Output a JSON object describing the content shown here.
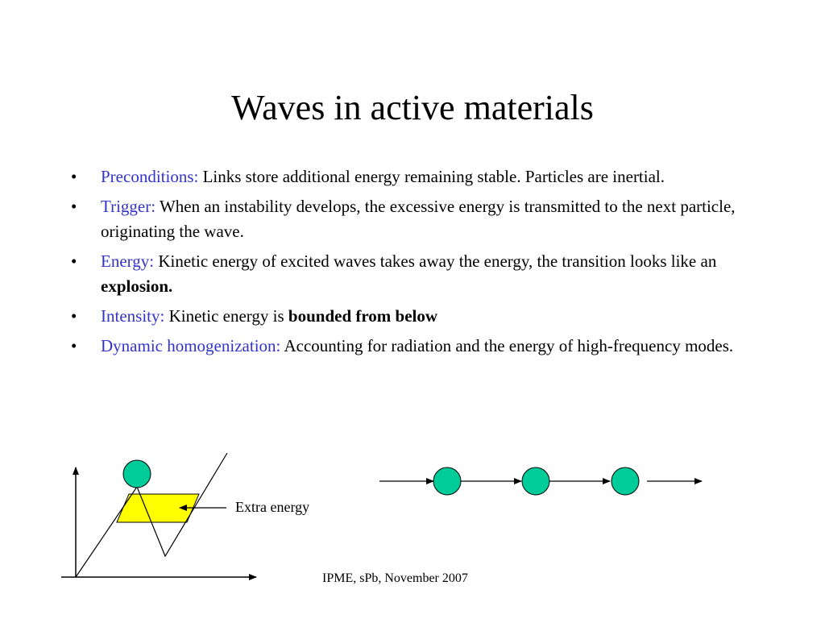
{
  "slide": {
    "title": "Waves in active materials",
    "bullets": [
      {
        "label": "Preconditions:",
        "text": " Links store additional energy remaining stable. Particles are inertial.",
        "bold": "",
        "tail": ""
      },
      {
        "label": "Trigger:",
        "text": " When an instability develops, the excessive energy is transmitted to the next particle, originating the wave.",
        "bold": "",
        "tail": ""
      },
      {
        "label": "Energy:",
        "text": " Kinetic energy of excited waves takes away the energy, the transition looks like an ",
        "bold": "explosion.",
        "tail": ""
      },
      {
        "label": "Intensity:",
        "text": " Kinetic energy is ",
        "bold": "bounded from below",
        "tail": ""
      },
      {
        "label": "Dynamic homogenization:",
        "text": " Accounting for radiation and the energy of high-frequency modes.",
        "bold": "",
        "tail": ""
      }
    ],
    "bullet_glyph": "•",
    "diagram": {
      "extra_energy_label": "Extra energy"
    },
    "footer": "IPME, sPb, November 2007"
  },
  "colors": {
    "label": "#3333cc",
    "particle": "#00cc99",
    "energy_region": "#ffff00"
  }
}
